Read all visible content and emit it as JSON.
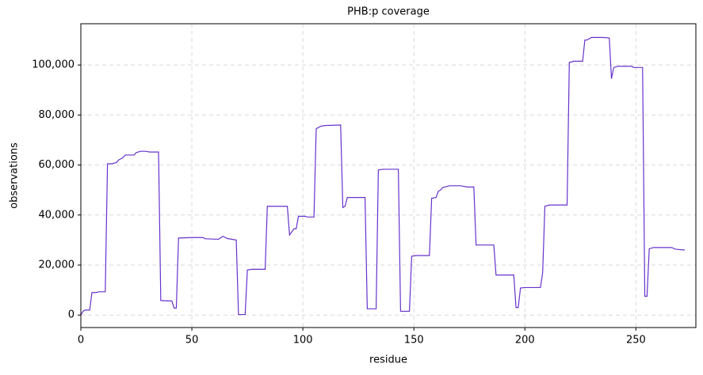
{
  "chart_data": {
    "type": "line",
    "title": "PHB:p coverage",
    "x_label": "residue",
    "y_label": "observations",
    "x": [
      0,
      1,
      2,
      4,
      5,
      7,
      8,
      11,
      12,
      14,
      16,
      17,
      19,
      20,
      24,
      25,
      27,
      29,
      31,
      35,
      36,
      41,
      42,
      43,
      44,
      50,
      55,
      56,
      62,
      64,
      66,
      70,
      71,
      74,
      75,
      77,
      83,
      84,
      93,
      94,
      96,
      97,
      98,
      101,
      102,
      105,
      106,
      108,
      110,
      117,
      118,
      119,
      120,
      128,
      129,
      133,
      134,
      136,
      143,
      144,
      148,
      149,
      151,
      157,
      158,
      160,
      161,
      162,
      163,
      166,
      171,
      174,
      177,
      178,
      186,
      187,
      195,
      196,
      197,
      198,
      200,
      207,
      208,
      209,
      211,
      219,
      220,
      222,
      226,
      227,
      228,
      230,
      235,
      238,
      239,
      240,
      242,
      248,
      249,
      253,
      254,
      255,
      256,
      258,
      266,
      268,
      272
    ],
    "values": [
      0,
      1500,
      2000,
      2000,
      9000,
      9000,
      9300,
      9300,
      60500,
      60500,
      61000,
      62000,
      63000,
      64000,
      64000,
      65000,
      65500,
      65500,
      65200,
      65200,
      5800,
      5600,
      2800,
      2800,
      30800,
      31000,
      31000,
      30500,
      30300,
      31500,
      30600,
      30000,
      200,
      200,
      18000,
      18300,
      18300,
      43500,
      43500,
      32000,
      34500,
      34500,
      39500,
      39500,
      39200,
      39200,
      74500,
      75500,
      75800,
      76000,
      43000,
      43500,
      47000,
      47000,
      2500,
      2500,
      58000,
      58300,
      58300,
      1500,
      1500,
      23500,
      23800,
      23800,
      46700,
      47000,
      49500,
      50000,
      51000,
      51700,
      51700,
      51200,
      51200,
      28000,
      28000,
      16000,
      16000,
      3000,
      3000,
      10800,
      11000,
      11000,
      17000,
      43500,
      44000,
      44000,
      101000,
      101500,
      101500,
      110000,
      110000,
      111000,
      111000,
      110800,
      94500,
      99000,
      99500,
      99500,
      99000,
      99000,
      7500,
      7500,
      26500,
      27000,
      27000,
      26300,
      26000
    ],
    "color": "#6633cc",
    "xlim": [
      0,
      277
    ],
    "xticks": [
      0,
      50,
      100,
      150,
      200,
      250
    ],
    "ylim": [
      -5000,
      116500
    ],
    "yticks": [
      0,
      {
        "value": 20000,
        "label": "20,000"
      },
      {
        "value": 40000,
        "label": "40,000"
      },
      {
        "value": 60000,
        "label": "60,000"
      },
      {
        "value": 80000,
        "label": "80,000"
      },
      {
        "value": 100000,
        "label": "100,000"
      }
    ],
    "grid": true
  }
}
